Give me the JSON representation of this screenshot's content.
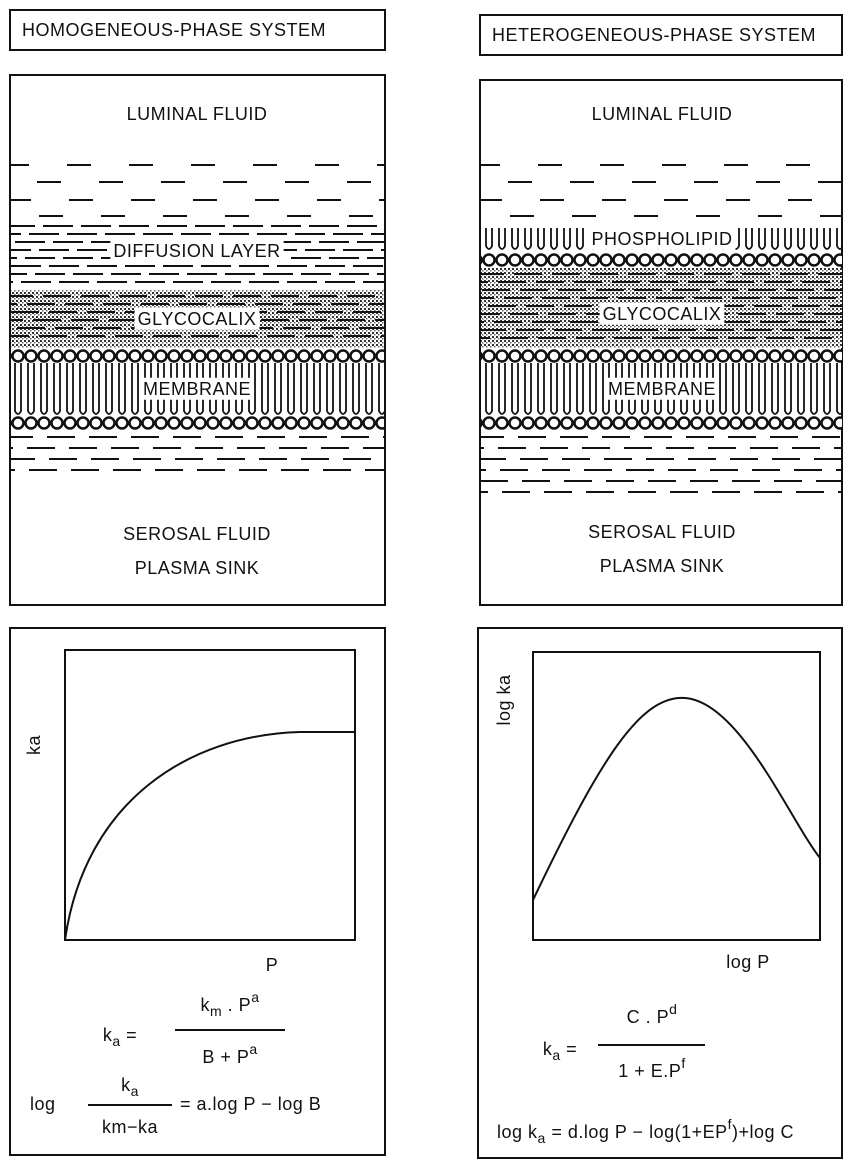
{
  "left": {
    "title": "HOMOGENEOUS-PHASE SYSTEM",
    "diagram": {
      "top_label": "LUMINAL  FLUID",
      "layers": [
        "DIFFUSION LAYER",
        "GLYCOCALIX",
        "MEMBRANE"
      ],
      "bottom_label": [
        "SEROSAL FLUID",
        "PLASMA SINK"
      ]
    },
    "graph": {
      "y_label": [
        {
          "text": "k"
        },
        {
          "text": "a"
        }
      ],
      "x_label": "P",
      "equations": [
        {
          "lhs": [
            {
              "text": "k"
            },
            {
              "text": "a",
              "position": "sub"
            },
            {
              "text": " ="
            }
          ],
          "numerator": [
            {
              "text": "k"
            },
            {
              "text": "m",
              "position": "sub"
            },
            {
              "text": " . P"
            },
            {
              "text": "a",
              "position": "sup"
            }
          ],
          "denominator": [
            {
              "text": "B + P"
            },
            {
              "text": "a",
              "position": "sup"
            }
          ]
        },
        {
          "prefix": "log",
          "numerator": [
            {
              "text": "k"
            },
            {
              "text": "a",
              "position": "sub"
            }
          ],
          "denominator": [
            {
              "text": "km−ka"
            }
          ],
          "rhs": [
            {
              "text": "= a.log P − log B"
            }
          ]
        }
      ]
    }
  },
  "right": {
    "title": "HETEROGENEOUS-PHASE SYSTEM",
    "diagram": {
      "top_label": "LUMINAL  FLUID",
      "layers": [
        "PHOSPHOLIPID",
        "GLYCOCALIX",
        "MEMBRANE"
      ],
      "bottom_label": [
        "SEROSAL  FLUID",
        "PLASMA  SINK"
      ]
    },
    "graph": {
      "y_label": [
        {
          "text": "log ka"
        }
      ],
      "x_label": "log P",
      "equations": [
        {
          "lhs": [
            {
              "text": "k"
            },
            {
              "text": "a",
              "position": "sub"
            },
            {
              "text": " ="
            }
          ],
          "numerator": [
            {
              "text": "C . P"
            },
            {
              "text": "d",
              "position": "sup"
            }
          ],
          "denominator": [
            {
              "text": "1 + E.P"
            },
            {
              "text": "f",
              "position": "sup"
            }
          ]
        },
        {
          "text": [
            {
              "text": "log k"
            },
            {
              "text": "a",
              "position": "sub"
            },
            {
              "text": " = d.log P − log(1+EP"
            },
            {
              "text": "f",
              "position": "sup"
            },
            {
              "text": ")+log C"
            }
          ]
        }
      ]
    }
  }
}
